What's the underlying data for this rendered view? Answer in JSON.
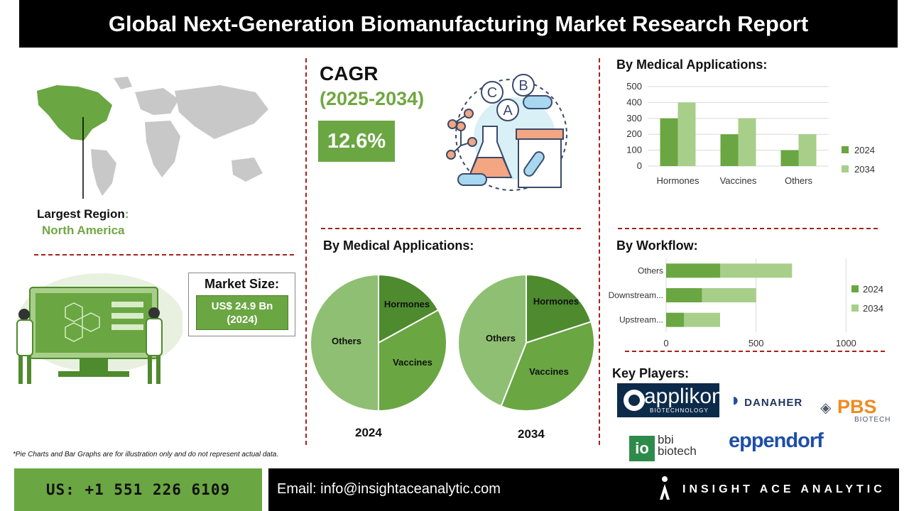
{
  "title": "Global Next-Generation Biomanufacturing Market Research Report",
  "region": {
    "label": "Largest Region",
    "colon": ":",
    "value": "North America"
  },
  "market_size": {
    "label": "Market Size:",
    "value": "US$ 24.9 Bn",
    "year": "(2024)"
  },
  "cagr": {
    "label": "CAGR",
    "period": "(2025-2034)",
    "value": "12.6%"
  },
  "icons": {
    "map": "world-map-icon",
    "lab": "lab-scientists-icon",
    "pharma": "pharma-chemistry-icon"
  },
  "colors": {
    "dark_green": "#4e8a2e",
    "green": "#6aa642",
    "light_green": "#a8cf8a",
    "accent_red": "#a8201a"
  },
  "sections": {
    "bar_apps": "By Medical Applications:",
    "pie_apps": "By Medical Applications:",
    "workflow": "By Workflow:",
    "players": "Key Players:"
  },
  "footnote": "*Pie Charts and Bar Graphs are for illustration only and do not represent actual data.",
  "footer": {
    "phone": "US: +1 551 226 6109",
    "email": "Email: info@insightaceanalytic.com",
    "brand": "INSIGHT ACE ANALYTIC"
  },
  "players": {
    "applikon": "applikon",
    "applikon_sub": "BIOTECHNOLOGY",
    "danaher": "DANAHER",
    "pbs": "PBS",
    "pbs_sub": "BIOTECH",
    "bbi1": "bbi",
    "bbi2": "biotech",
    "eppendorf": "eppendorf"
  },
  "chart_data": [
    {
      "type": "bar",
      "title": "By Medical Applications:",
      "categories": [
        "Hormones",
        "Vaccines",
        "Others"
      ],
      "series": [
        {
          "name": "2024",
          "values": [
            300,
            200,
            100
          ]
        },
        {
          "name": "2034",
          "values": [
            400,
            300,
            200
          ]
        }
      ],
      "ylim": [
        0,
        500
      ],
      "yticks": [
        0,
        100,
        200,
        300,
        400,
        500
      ],
      "grid": true,
      "legend": "right"
    },
    {
      "type": "pie",
      "title": "By Medical Applications:",
      "name": "2024",
      "labels": [
        "Hormones",
        "Vaccines",
        "Others"
      ],
      "values": [
        17,
        33,
        50
      ]
    },
    {
      "type": "pie",
      "title": "By Medical Applications:",
      "name": "2034",
      "labels": [
        "Hormones",
        "Vaccines",
        "Others"
      ],
      "values": [
        20,
        36,
        44
      ]
    },
    {
      "type": "bar",
      "orientation": "horizontal",
      "stacked": true,
      "title": "By Workflow:",
      "categories": [
        "Upstream...",
        "Downstream...",
        "Others"
      ],
      "series": [
        {
          "name": "2024",
          "values": [
            100,
            200,
            300
          ]
        },
        {
          "name": "2034",
          "values": [
            200,
            300,
            400
          ]
        }
      ],
      "xlim": [
        0,
        1200
      ],
      "xticks": [
        0,
        500,
        1000
      ],
      "grid": true,
      "legend": "right"
    }
  ]
}
